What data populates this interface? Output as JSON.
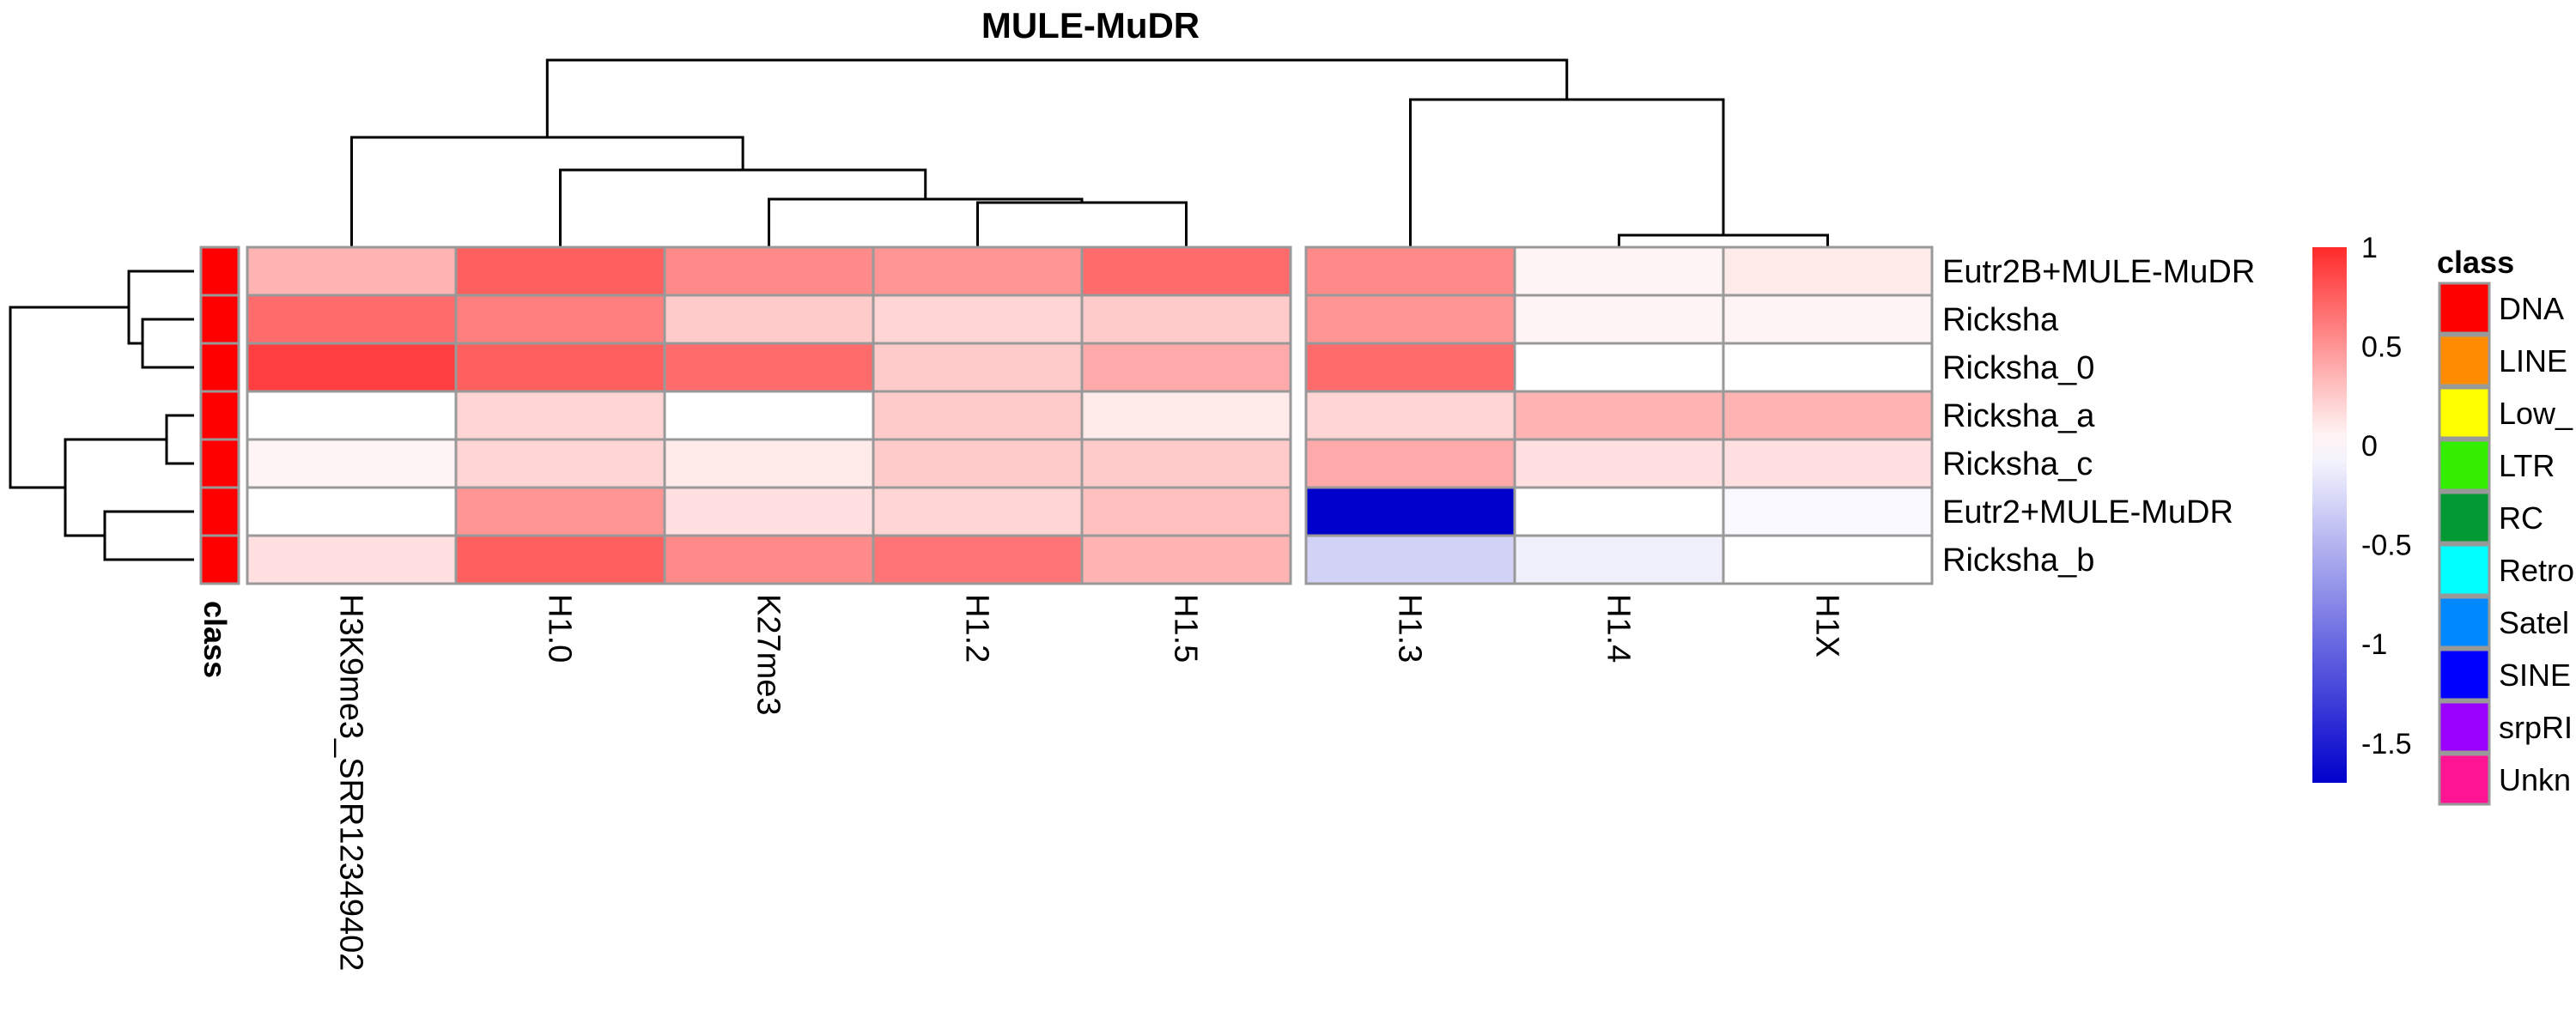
{
  "chart_data": {
    "type": "heatmap",
    "title": "MULE-MuDR",
    "rows": [
      "Eutr2B+MULE-MuDR",
      "Ricksha",
      "Ricksha_0",
      "Ricksha_a",
      "Ricksha_c",
      "Eutr2+MULE-MuDR",
      "Ricksha_b"
    ],
    "columns": [
      "H3K9me3_SRR12349402",
      "H1.0",
      "K27me3",
      "H1.2",
      "H1.5",
      "H1.3",
      "H1.4",
      "H1X"
    ],
    "column_split_after": 5,
    "values": [
      [
        0.35,
        0.75,
        0.55,
        0.5,
        0.7,
        0.55,
        0.05,
        0.1
      ],
      [
        0.7,
        0.6,
        0.25,
        0.2,
        0.25,
        0.5,
        0.05,
        0.05
      ],
      [
        0.9,
        0.75,
        0.7,
        0.25,
        0.4,
        0.7,
        0.0,
        0.0
      ],
      [
        0.0,
        0.2,
        0.0,
        0.25,
        0.1,
        0.2,
        0.35,
        0.35
      ],
      [
        0.05,
        0.2,
        0.1,
        0.25,
        0.25,
        0.4,
        0.15,
        0.15
      ],
      [
        0.0,
        0.5,
        0.15,
        0.2,
        0.3,
        -1.7,
        0.0,
        -0.05
      ],
      [
        0.15,
        0.75,
        0.55,
        0.65,
        0.35,
        -0.3,
        -0.1,
        0.0
      ]
    ],
    "row_annotation": {
      "name": "class",
      "values": [
        "DNA",
        "DNA",
        "DNA",
        "DNA",
        "DNA",
        "DNA",
        "DNA"
      ]
    },
    "color_scale": {
      "min": -1.7,
      "max": 1.0,
      "low_color": "#0000cc",
      "mid_color": "#ffffff",
      "high_color": "#ff2a2a",
      "ticks": [
        1,
        0.5,
        0,
        -0.5,
        -1,
        -1.5
      ],
      "tick_labels": [
        "1",
        "0.5",
        "0",
        "-0.5",
        "-1",
        "-1.5"
      ]
    },
    "legend": {
      "title": "class",
      "items": [
        {
          "label": "DNA",
          "color": "#ff0000"
        },
        {
          "label": "LINE",
          "color": "#ff8c00"
        },
        {
          "label": "Low_",
          "color": "#ffff00"
        },
        {
          "label": "LTR",
          "color": "#33ee00"
        },
        {
          "label": "RC",
          "color": "#009933"
        },
        {
          "label": "Retro",
          "color": "#00ffff"
        },
        {
          "label": "Satel",
          "color": "#0088ff"
        },
        {
          "label": "SINE",
          "color": "#0000ff"
        },
        {
          "label": "srpRI",
          "color": "#9900ff"
        },
        {
          "label": "Unkn",
          "color": "#ff1493"
        }
      ]
    }
  }
}
